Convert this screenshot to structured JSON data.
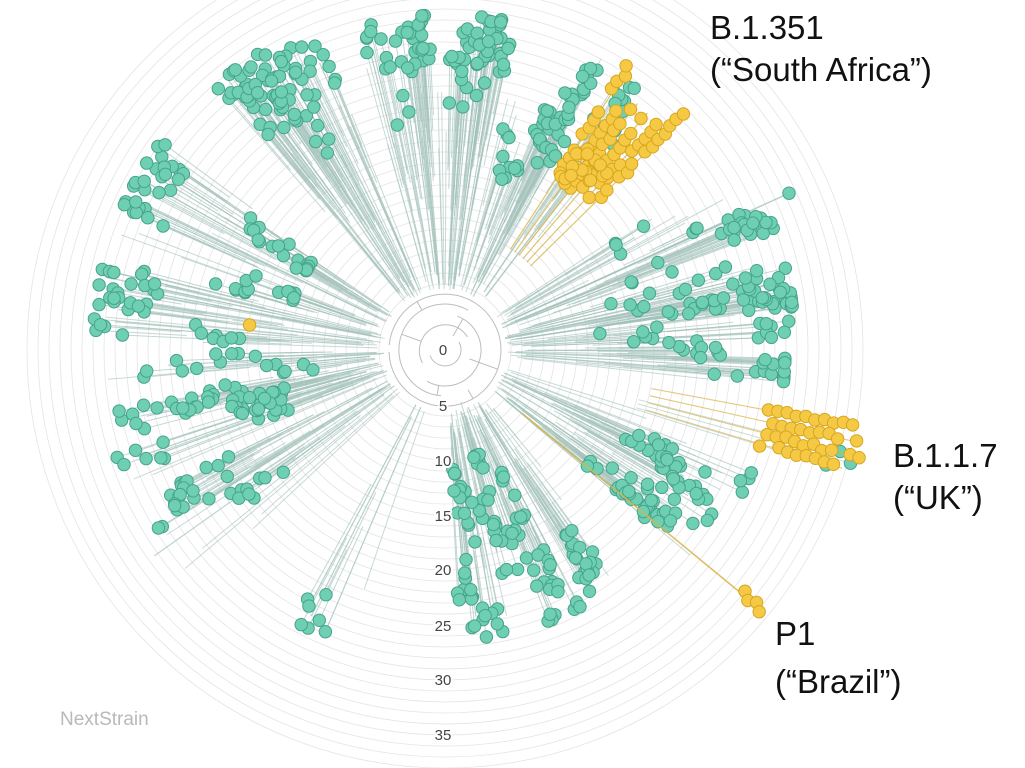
{
  "figure": {
    "watermark": "NextStrain"
  },
  "axis": {
    "ticks": [
      "0",
      "5",
      "10",
      "15",
      "20",
      "25",
      "30",
      "35"
    ]
  },
  "clades": {
    "sa": {
      "name": "B.1.351",
      "alias": "(“South Africa”)"
    },
    "uk": {
      "name": "B.1.1.7",
      "alias": "(“UK”)"
    },
    "br": {
      "name": "P1",
      "alias": "(“Brazil”)"
    }
  },
  "colors": {
    "default_node": "#6fcfb2",
    "default_node_edge": "#46a38b",
    "variant_node": "#f6c945",
    "variant_node_edge": "#d6a61e",
    "branch": "#a3c2ba",
    "variant_branch": "#d9b44a",
    "ring": "#e4e4e4",
    "root": "#bdbdbd"
  }
}
